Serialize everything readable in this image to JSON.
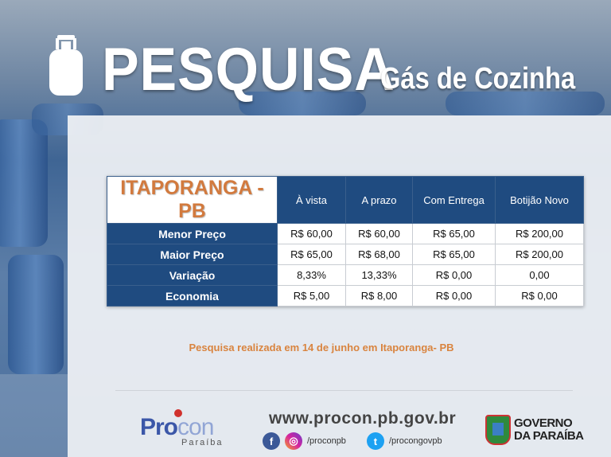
{
  "header": {
    "title": "PESQUISA",
    "subtitle": "Gás de Cozinha",
    "icon": "gas-cylinder-icon"
  },
  "table": {
    "city": "ITAPORANGA - PB",
    "columns": [
      "À vista",
      "A prazo",
      "Com Entrega",
      "Botijão Novo"
    ],
    "rows": [
      {
        "label": "Menor Preço",
        "values": [
          "R$ 60,00",
          "R$ 60,00",
          "R$ 65,00",
          "R$ 200,00"
        ]
      },
      {
        "label": "Maior Preço",
        "values": [
          "R$ 65,00",
          "R$ 68,00",
          "R$ 65,00",
          "R$ 200,00"
        ]
      },
      {
        "label": "Variação",
        "values": [
          "8,33%",
          "13,33%",
          "R$ 0,00",
          "0,00"
        ]
      },
      {
        "label": "Economia",
        "values": [
          "R$ 5,00",
          "R$ 8,00",
          "R$ 0,00",
          "R$ 0,00"
        ]
      }
    ]
  },
  "note": "Pesquisa realizada em 14 de junho em Itaporanga- PB",
  "footer": {
    "procon_logo": {
      "part1": "Pro",
      "part2": "con",
      "sub": "Paraíba"
    },
    "website": "www.procon.pb.gov.br",
    "facebook_instagram_handle": "/proconpb",
    "twitter_handle": "/procongovpb",
    "gov_logo": {
      "line1": "GOVERNO",
      "line2": "DA PARAÍBA"
    }
  },
  "colors": {
    "table_blue": "#1f4b80",
    "accent_orange": "#d9843f"
  }
}
